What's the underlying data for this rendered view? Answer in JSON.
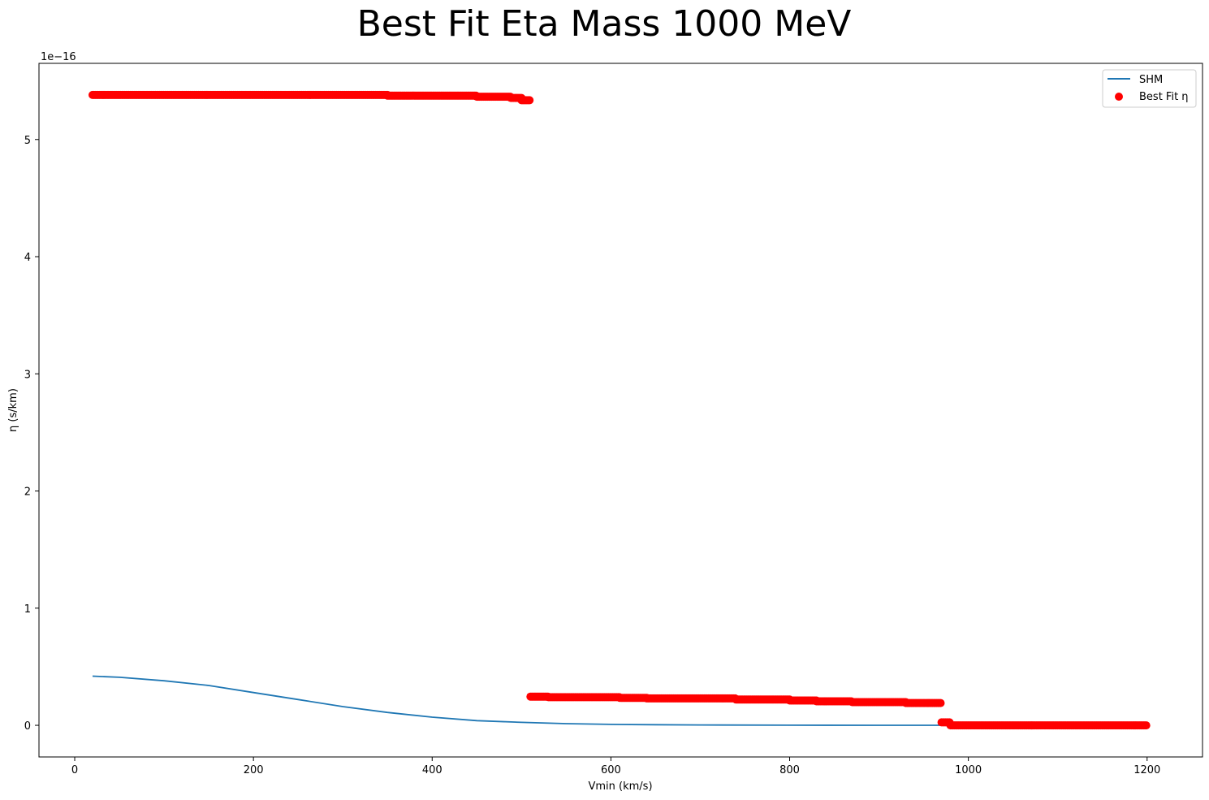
{
  "chart_data": {
    "type": "scatter",
    "title": "Best Fit Eta Mass 1000 MeV",
    "xlabel": "Vmin (km/s)",
    "ylabel": "η (s/km)",
    "y_offset_label": "1e−16",
    "y_scale": 1e-16,
    "xlim": [
      -40,
      1262
    ],
    "ylim": [
      -0.27,
      5.65
    ],
    "xticks": [
      0,
      200,
      400,
      600,
      800,
      1000,
      1200
    ],
    "yticks": [
      0,
      1,
      2,
      3,
      4,
      5
    ],
    "grid": false,
    "legend_position": "top-right",
    "series": [
      {
        "name": "SHM",
        "kind": "line",
        "color": "#1f77b4",
        "x": [
          20,
          50,
          100,
          150,
          200,
          250,
          300,
          350,
          400,
          450,
          500,
          550,
          600,
          650,
          700,
          800,
          900,
          1000,
          1100,
          1200
        ],
        "y": [
          0.42,
          0.41,
          0.38,
          0.34,
          0.28,
          0.22,
          0.16,
          0.11,
          0.07,
          0.04,
          0.025,
          0.014,
          0.008,
          0.005,
          0.003,
          0.001,
          0.0005,
          0.0002,
          0.0001,
          0.0
        ]
      },
      {
        "name": "Best Fit η",
        "kind": "scatter",
        "color": "#ff0000",
        "segments": [
          {
            "x_start": 20,
            "x_end": 350,
            "y": 5.38
          },
          {
            "x_start": 350,
            "x_end": 450,
            "y": 5.375
          },
          {
            "x_start": 450,
            "x_end": 488,
            "y": 5.365
          },
          {
            "x_start": 488,
            "x_end": 500,
            "y": 5.355
          },
          {
            "x_start": 500,
            "x_end": 510,
            "y": 5.335
          },
          {
            "x_start": 510,
            "x_end": 530,
            "y": 0.245
          },
          {
            "x_start": 530,
            "x_end": 610,
            "y": 0.24
          },
          {
            "x_start": 610,
            "x_end": 640,
            "y": 0.235
          },
          {
            "x_start": 640,
            "x_end": 740,
            "y": 0.23
          },
          {
            "x_start": 740,
            "x_end": 800,
            "y": 0.22
          },
          {
            "x_start": 800,
            "x_end": 830,
            "y": 0.212
          },
          {
            "x_start": 830,
            "x_end": 870,
            "y": 0.205
          },
          {
            "x_start": 870,
            "x_end": 930,
            "y": 0.198
          },
          {
            "x_start": 930,
            "x_end": 970,
            "y": 0.19
          },
          {
            "x_start": 970,
            "x_end": 980,
            "y": 0.025
          },
          {
            "x_start": 980,
            "x_end": 1200,
            "y": 0.0
          }
        ]
      }
    ]
  }
}
